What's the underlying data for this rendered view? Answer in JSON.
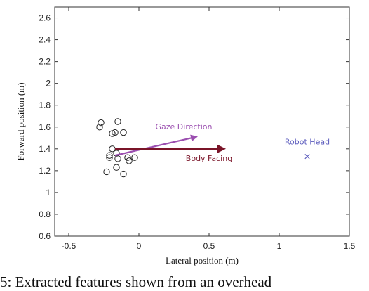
{
  "chart_data": {
    "type": "scatter",
    "title": "",
    "xlabel": "Lateral position (m)",
    "ylabel": "Forward position (m)",
    "xlim": [
      -0.6,
      1.5
    ],
    "ylim": [
      0.6,
      2.7
    ],
    "xticks": [
      "-0.5",
      "0",
      "0.5",
      "1",
      "1.5"
    ],
    "xtick_values": [
      -0.5,
      0,
      0.5,
      1,
      1.5
    ],
    "yticks": [
      "0.6",
      "0.8",
      "1",
      "1.2",
      "1.4",
      "1.6",
      "1.8",
      "2",
      "2.2",
      "2.4",
      "2.6"
    ],
    "ytick_values": [
      0.6,
      0.8,
      1.0,
      1.2,
      1.4,
      1.6,
      1.8,
      2.0,
      2.2,
      2.4,
      2.6
    ],
    "grid": false,
    "points": [
      {
        "x": -0.27,
        "y": 1.64
      },
      {
        "x": -0.28,
        "y": 1.6
      },
      {
        "x": -0.15,
        "y": 1.65
      },
      {
        "x": -0.19,
        "y": 1.54
      },
      {
        "x": -0.17,
        "y": 1.55
      },
      {
        "x": -0.11,
        "y": 1.55
      },
      {
        "x": -0.19,
        "y": 1.4
      },
      {
        "x": -0.21,
        "y": 1.34
      },
      {
        "x": -0.21,
        "y": 1.32
      },
      {
        "x": -0.16,
        "y": 1.36
      },
      {
        "x": -0.15,
        "y": 1.31
      },
      {
        "x": -0.08,
        "y": 1.32
      },
      {
        "x": -0.07,
        "y": 1.29
      },
      {
        "x": -0.03,
        "y": 1.32
      },
      {
        "x": -0.16,
        "y": 1.23
      },
      {
        "x": -0.23,
        "y": 1.19
      },
      {
        "x": -0.11,
        "y": 1.17
      }
    ],
    "robot_head": {
      "x": 1.2,
      "y": 1.33,
      "label": "Robot Head",
      "color": "#5b5bbd"
    },
    "arrows": [
      {
        "label": "Gaze Direction",
        "color": "#9b4fb0",
        "x0": -0.17,
        "y0": 1.34,
        "x1": 0.41,
        "y1": 1.51
      },
      {
        "label": "Body Facing",
        "color": "#7a1428",
        "x0": -0.17,
        "y0": 1.4,
        "x1": 0.61,
        "y1": 1.4
      }
    ],
    "annotations": [
      {
        "text": "Gaze Direction",
        "x": 0.32,
        "y": 1.58,
        "color": "#9b4fb0"
      },
      {
        "text": "Body Facing",
        "x": 0.5,
        "y": 1.29,
        "color": "#7a1428"
      },
      {
        "text": "Robot Head",
        "x": 1.2,
        "y": 1.44,
        "color": "#5b5bbd"
      }
    ]
  },
  "caption": "5: Extracted features shown from an overhead"
}
